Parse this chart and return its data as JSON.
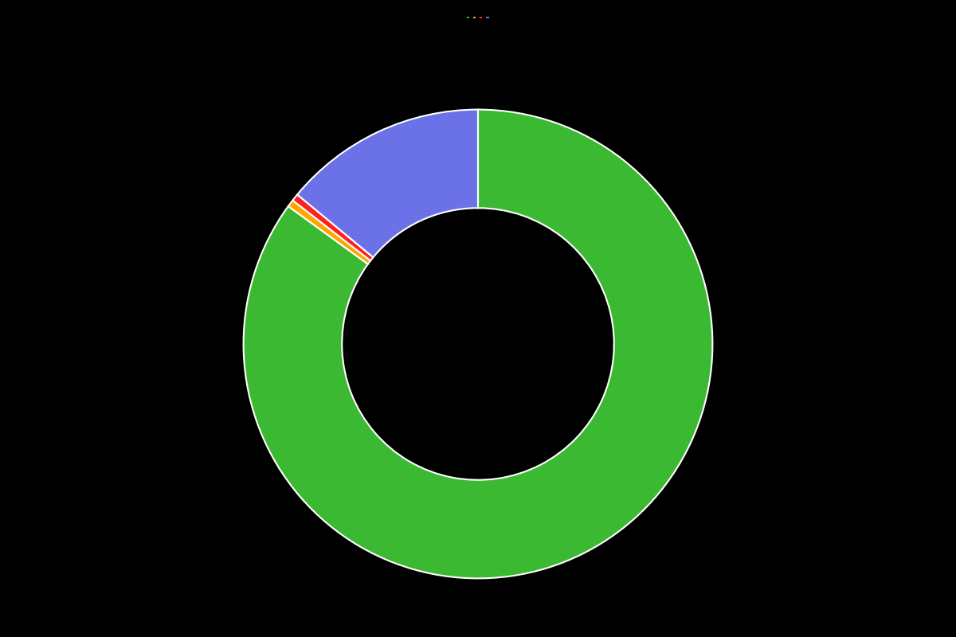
{
  "labels": [
    "",
    "",
    "",
    ""
  ],
  "values": [
    85,
    0.5,
    0.5,
    14
  ],
  "colors": [
    "#3CB932",
    "#FFA500",
    "#FF2020",
    "#6B72E8"
  ],
  "legend_colors": [
    "#3CB932",
    "#FFA500",
    "#FF2020",
    "#6B72E8"
  ],
  "background_color": "#000000",
  "wedge_linewidth": 1.5,
  "wedge_linecolor": "#ffffff",
  "donut_width": 0.42,
  "startangle": 90,
  "legend_ncol": 4,
  "figsize": [
    12.0,
    8.0
  ],
  "dpi": 100
}
